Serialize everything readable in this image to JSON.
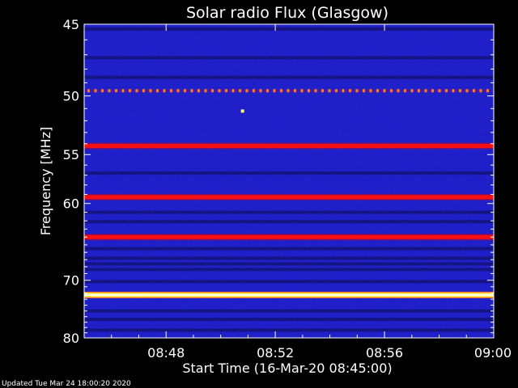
{
  "chart_data": {
    "type": "heatmap",
    "title": "Solar radio Flux (Glasgow)",
    "xlabel": "Start Time (16-Mar-20 08:45:00)",
    "ylabel": "Frequency [MHz]",
    "x_ticks": [
      {
        "label": "08:48",
        "minutes": 3
      },
      {
        "label": "08:52",
        "minutes": 7
      },
      {
        "label": "08:56",
        "minutes": 11
      },
      {
        "label": "09:00",
        "minutes": 15
      }
    ],
    "x_range_minutes": [
      0,
      15
    ],
    "y_ticks": [
      45,
      50,
      55,
      60,
      70,
      80
    ],
    "y_range_mhz": [
      45,
      80
    ],
    "background_level": "blue",
    "bands": [
      {
        "freq_mhz": 49.6,
        "level": "dashed-orange"
      },
      {
        "freq_mhz": 54.2,
        "level": "red"
      },
      {
        "freq_mhz": 59.3,
        "level": "red"
      },
      {
        "freq_mhz": 64.0,
        "level": "red"
      },
      {
        "freq_mhz": 72.3,
        "level": "yellow-white"
      }
    ],
    "spot": {
      "minutes": 5.8,
      "freq_mhz": 51.2,
      "level": "yellow"
    },
    "colors": {
      "background": "#000000",
      "low": "#1a1ad8",
      "dark_band": "#0a0a6a",
      "red": "#ff1010",
      "orange": "#ff7a1a",
      "yellow": "#ffff66",
      "white": "#ffffe8"
    }
  },
  "footer": "Updated Tue Mar 24 18:00:20 2020"
}
